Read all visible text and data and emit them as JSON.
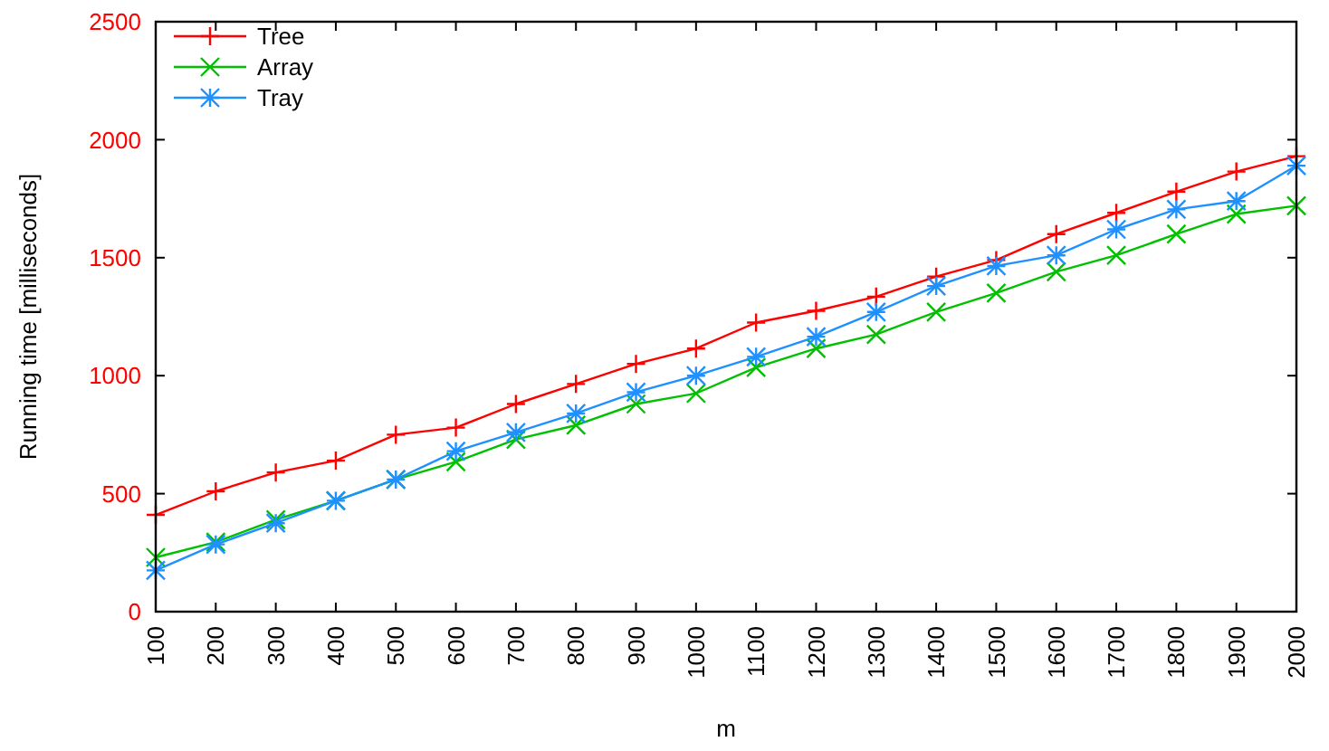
{
  "chart_data": {
    "type": "line",
    "xlabel": "m",
    "ylabel": "Running time [milliseconds]",
    "x": [
      100,
      200,
      300,
      400,
      500,
      600,
      700,
      800,
      900,
      1000,
      1100,
      1200,
      1300,
      1400,
      1500,
      1600,
      1700,
      1800,
      1900,
      2000
    ],
    "xlim": [
      100,
      2000
    ],
    "xticks": [
      100,
      200,
      300,
      400,
      500,
      600,
      700,
      800,
      900,
      1000,
      1100,
      1200,
      1300,
      1400,
      1500,
      1600,
      1700,
      1800,
      1900,
      2000
    ],
    "ylim": [
      0,
      2500
    ],
    "yticks": [
      0,
      500,
      1000,
      1500,
      2000,
      2500
    ],
    "grid": false,
    "legend": "top left",
    "series": [
      {
        "name": "Tree",
        "color": "#ff0000",
        "marker": "plus",
        "values": [
          410,
          510,
          590,
          640,
          750,
          780,
          880,
          965,
          1050,
          1115,
          1225,
          1275,
          1335,
          1420,
          1490,
          1600,
          1690,
          1780,
          1865,
          1930
        ]
      },
      {
        "name": "Array",
        "color": "#00c000",
        "marker": "x",
        "values": [
          230,
          295,
          390,
          470,
          560,
          635,
          730,
          790,
          880,
          925,
          1035,
          1115,
          1175,
          1270,
          1350,
          1440,
          1510,
          1600,
          1685,
          1720
        ]
      },
      {
        "name": "Tray",
        "color": "#1e90ff",
        "marker": "cross",
        "values": [
          175,
          285,
          375,
          470,
          560,
          680,
          760,
          840,
          930,
          1000,
          1080,
          1165,
          1270,
          1380,
          1465,
          1510,
          1620,
          1705,
          1740,
          1890
        ]
      }
    ]
  }
}
